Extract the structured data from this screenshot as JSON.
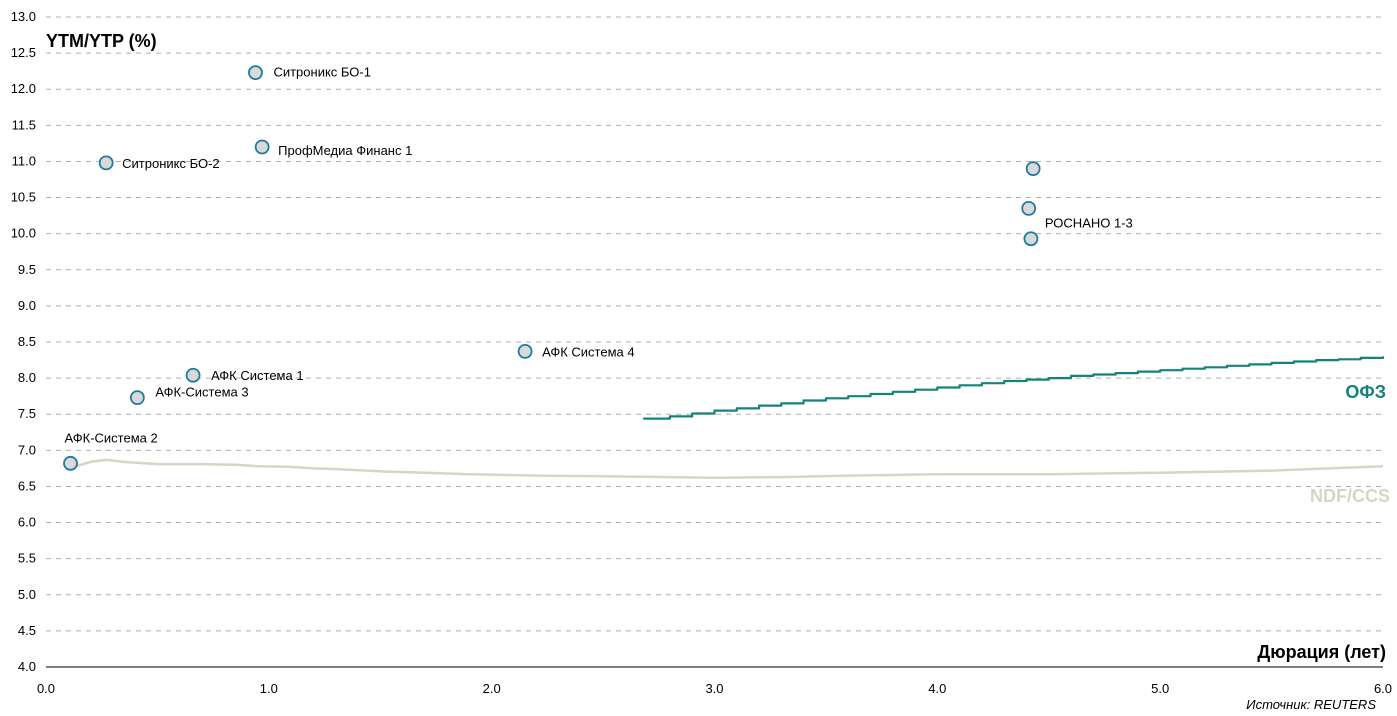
{
  "chart_data": {
    "type": "scatter",
    "ylabel": "YTM/YTP (%)",
    "xlabel": "Дюрация (лет)",
    "source": "Источник: REUTERS",
    "xlim": [
      0.0,
      6.0
    ],
    "ylim": [
      4.0,
      13.0
    ],
    "x_ticks": [
      "0.0",
      "1.0",
      "2.0",
      "3.0",
      "4.0",
      "5.0",
      "6.0"
    ],
    "y_ticks": [
      "4.0",
      "4.5",
      "5.0",
      "5.5",
      "6.0",
      "6.5",
      "7.0",
      "7.5",
      "8.0",
      "8.5",
      "9.0",
      "9.5",
      "10.0",
      "10.5",
      "11.0",
      "11.5",
      "12.0",
      "12.5",
      "13.0"
    ],
    "grid": "horizontal dashed",
    "points": [
      {
        "label": "Ситроникс БО-1",
        "x": 0.94,
        "y": 12.23
      },
      {
        "label": "ПрофМедиа Финанс 1",
        "x": 0.97,
        "y": 11.2
      },
      {
        "label": "Ситроникс БО-2",
        "x": 0.27,
        "y": 10.98
      },
      {
        "label": "",
        "x": 4.43,
        "y": 10.9
      },
      {
        "label": "",
        "x": 4.41,
        "y": 10.35
      },
      {
        "label": "РОСНАНО 1-3",
        "x": 4.42,
        "y": 9.93
      },
      {
        "label": "АФК Система 4",
        "x": 2.15,
        "y": 8.37
      },
      {
        "label": "АФК Система 1",
        "x": 0.66,
        "y": 8.04
      },
      {
        "label": "АФК-Система 3",
        "x": 0.41,
        "y": 7.73
      },
      {
        "label": "АФК-Система 2",
        "x": 0.11,
        "y": 6.82
      }
    ],
    "series": [
      {
        "name": "ОФЗ",
        "color": "#14837a",
        "style": "step",
        "x": [
          2.68,
          2.8,
          2.9,
          3.0,
          3.1,
          3.2,
          3.3,
          3.4,
          3.5,
          3.6,
          3.7,
          3.8,
          3.9,
          4.0,
          4.1,
          4.2,
          4.3,
          4.4,
          4.5,
          4.6,
          4.7,
          4.8,
          4.9,
          5.0,
          5.1,
          5.2,
          5.3,
          5.4,
          5.5,
          5.6,
          5.7,
          5.8,
          5.9,
          6.0
        ],
        "values": [
          7.44,
          7.47,
          7.51,
          7.55,
          7.58,
          7.62,
          7.65,
          7.69,
          7.72,
          7.75,
          7.78,
          7.81,
          7.84,
          7.87,
          7.9,
          7.93,
          7.96,
          7.98,
          8.0,
          8.03,
          8.05,
          8.07,
          8.09,
          8.11,
          8.13,
          8.15,
          8.17,
          8.19,
          8.21,
          8.23,
          8.25,
          8.26,
          8.28,
          8.3
        ]
      },
      {
        "name": "NDF/CCS",
        "color": "#d8d5c5",
        "style": "line",
        "x": [
          0.1,
          0.2,
          0.27,
          0.35,
          0.5,
          0.7,
          0.85,
          0.95,
          1.1,
          1.2,
          1.3,
          1.5,
          1.7,
          1.9,
          2.2,
          2.5,
          2.8,
          3.0,
          3.3,
          3.6,
          4.0,
          4.5,
          5.0,
          5.5,
          6.0
        ],
        "values": [
          6.75,
          6.84,
          6.87,
          6.84,
          6.81,
          6.81,
          6.8,
          6.78,
          6.77,
          6.75,
          6.74,
          6.71,
          6.69,
          6.67,
          6.65,
          6.64,
          6.63,
          6.62,
          6.63,
          6.65,
          6.67,
          6.67,
          6.69,
          6.72,
          6.78
        ]
      }
    ]
  }
}
